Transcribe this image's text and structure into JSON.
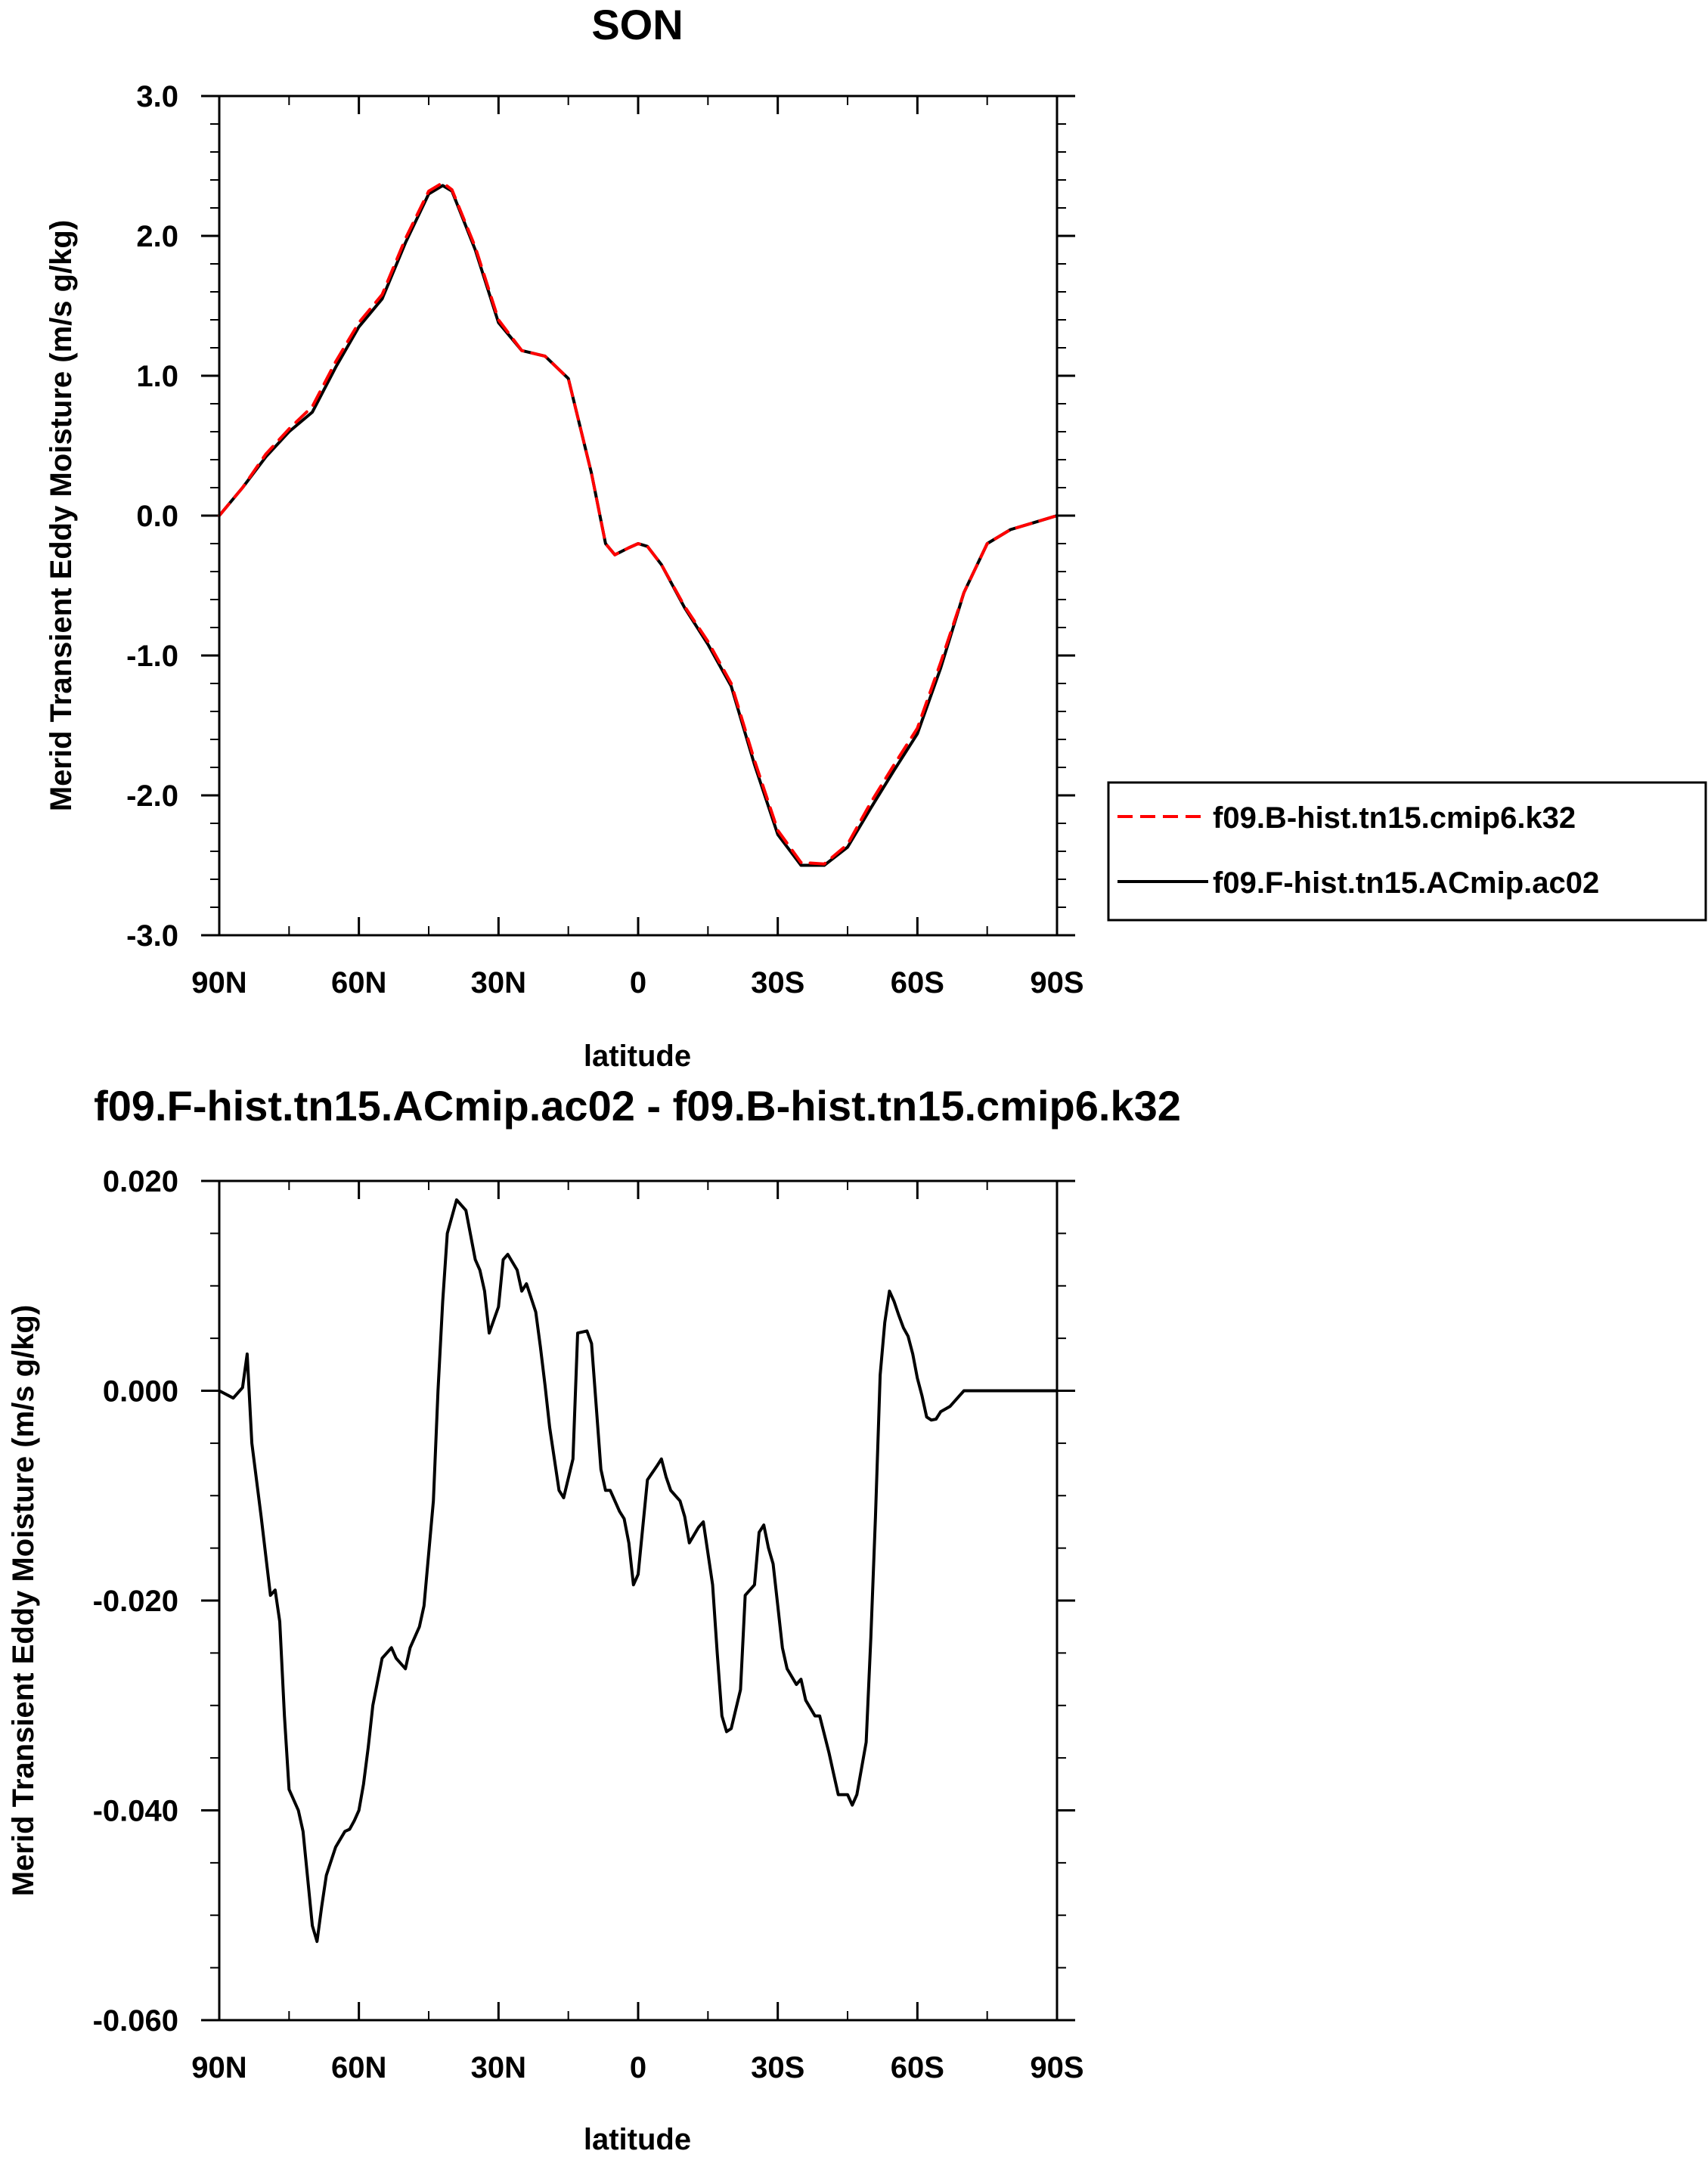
{
  "chart_data": [
    {
      "type": "line",
      "title": "SON",
      "xlabel": "latitude",
      "ylabel": "Merid Transient Eddy Moisture (m/s g/kg)",
      "xlim": [
        90,
        -90
      ],
      "ylim": [
        -3.0,
        3.0
      ],
      "x_ticks": [
        90,
        60,
        30,
        0,
        -30,
        -60,
        -90
      ],
      "x_tick_labels": [
        "90N",
        "60N",
        "30N",
        "0",
        "30S",
        "60S",
        "90S"
      ],
      "y_ticks": [
        3.0,
        2.0,
        1.0,
        0.0,
        -1.0,
        -2.0,
        -3.0
      ],
      "y_tick_labels": [
        "3.0",
        "2.0",
        "1.0",
        "0.0",
        "-1.0",
        "-2.0",
        "-3.0"
      ],
      "grid": false,
      "legend_position": "right",
      "x": [
        90,
        85,
        80,
        75,
        70,
        65,
        60,
        55,
        50,
        45,
        42,
        40,
        35,
        30,
        25,
        20,
        15,
        10,
        7,
        5,
        2,
        0,
        -2,
        -5,
        -10,
        -15,
        -20,
        -25,
        -30,
        -35,
        -40,
        -45,
        -50,
        -55,
        -60,
        -65,
        -70,
        -75,
        -80,
        -85,
        -90
      ],
      "series": [
        {
          "name": "f09.B-hist.tn15.cmip6.k32",
          "color": "#ff0000",
          "dash": "dashed",
          "values": [
            0.0,
            0.2,
            0.44,
            0.62,
            0.78,
            1.1,
            1.38,
            1.58,
            1.98,
            2.32,
            2.38,
            2.33,
            1.92,
            1.4,
            1.18,
            1.14,
            0.98,
            0.3,
            -0.2,
            -0.28,
            -0.23,
            -0.2,
            -0.22,
            -0.35,
            -0.65,
            -0.9,
            -1.2,
            -1.75,
            -2.25,
            -2.48,
            -2.49,
            -2.35,
            -2.05,
            -1.78,
            -1.52,
            -1.05,
            -0.55,
            -0.2,
            -0.1,
            -0.05,
            0.0
          ]
        },
        {
          "name": "f09.F-hist.tn15.ACmip.ac02",
          "color": "#000000",
          "dash": "solid",
          "values": [
            0.0,
            0.2,
            0.42,
            0.6,
            0.74,
            1.06,
            1.35,
            1.55,
            1.95,
            2.3,
            2.36,
            2.32,
            1.9,
            1.38,
            1.18,
            1.14,
            0.98,
            0.3,
            -0.2,
            -0.28,
            -0.23,
            -0.2,
            -0.22,
            -0.35,
            -0.66,
            -0.92,
            -1.22,
            -1.78,
            -2.28,
            -2.5,
            -2.5,
            -2.37,
            -2.09,
            -1.82,
            -1.56,
            -1.09,
            -0.55,
            -0.2,
            -0.1,
            -0.05,
            0.0
          ]
        }
      ]
    },
    {
      "type": "line",
      "title": "f09.F-hist.tn15.ACmip.ac02 - f09.B-hist.tn15.cmip6.k32",
      "xlabel": "latitude",
      "ylabel": "Merid Transient Eddy Moisture (m/s g/kg)",
      "xlim": [
        90,
        -90
      ],
      "ylim": [
        -0.06,
        0.02
      ],
      "x_ticks": [
        90,
        60,
        30,
        0,
        -30,
        -60,
        -90
      ],
      "x_tick_labels": [
        "90N",
        "60N",
        "30N",
        "0",
        "30S",
        "60S",
        "90S"
      ],
      "y_ticks": [
        0.02,
        0.0,
        -0.02,
        -0.04,
        -0.06
      ],
      "y_tick_labels": [
        "0.020",
        "0.000",
        "-0.020",
        "-0.040",
        "-0.060"
      ],
      "grid": false,
      "x": [
        90,
        87,
        85,
        84,
        83,
        81,
        79,
        78,
        77,
        76,
        75,
        73,
        72,
        70,
        69,
        68,
        67,
        65,
        63,
        62,
        61,
        60,
        59,
        58,
        57,
        55,
        53,
        52,
        51,
        50,
        49,
        47,
        46,
        44,
        43,
        42,
        41,
        39,
        37,
        35,
        34,
        33,
        32,
        30,
        29,
        28,
        26,
        25,
        24,
        22,
        21,
        20,
        19,
        17,
        16,
        14,
        13,
        11,
        10,
        8,
        7,
        6,
        4,
        3,
        2,
        1,
        0,
        -2,
        -4,
        -5,
        -6,
        -7,
        -9,
        -10,
        -11,
        -13,
        -14,
        -16,
        -17,
        -18,
        -19,
        -20,
        -22,
        -23,
        -25,
        -26,
        -27,
        -28,
        -29,
        -30,
        -31,
        -32,
        -34,
        -35,
        -36,
        -38,
        -39,
        -41,
        -42,
        -43,
        -45,
        -46,
        -47,
        -49,
        -50,
        -51,
        -52,
        -53,
        -54,
        -55,
        -56,
        -57,
        -58,
        -59,
        -60,
        -61,
        -62,
        -63,
        -64,
        -65,
        -67,
        -69,
        -70,
        -71,
        -72,
        -74,
        -75,
        -76,
        -77,
        -78,
        -79,
        -80,
        -81,
        -82,
        -83,
        -84,
        -85,
        -87,
        -88,
        -89,
        -90
      ],
      "values": [
        0.0,
        -0.0007,
        0.0003,
        0.0035,
        -0.005,
        -0.012,
        -0.0195,
        -0.019,
        -0.022,
        -0.031,
        -0.038,
        -0.04,
        -0.042,
        -0.051,
        -0.0525,
        -0.0492,
        -0.0462,
        -0.0435,
        -0.042,
        -0.0418,
        -0.041,
        -0.04,
        -0.0375,
        -0.034,
        -0.03,
        -0.0255,
        -0.0245,
        -0.0255,
        -0.026,
        -0.0265,
        -0.0245,
        -0.0225,
        -0.0205,
        -0.0105,
        0.0,
        0.0085,
        0.015,
        0.0182,
        0.0172,
        0.0125,
        0.0115,
        0.0095,
        0.0055,
        0.008,
        0.0125,
        0.013,
        0.0115,
        0.0095,
        0.0102,
        0.0075,
        0.0042,
        0.0005,
        -0.0035,
        -0.0095,
        -0.0102,
        -0.0065,
        0.0055,
        0.0057,
        0.0045,
        -0.0075,
        -0.0095,
        -0.0095,
        -0.0115,
        -0.0122,
        -0.0145,
        -0.0185,
        -0.0175,
        -0.0085,
        -0.0072,
        -0.0065,
        -0.0082,
        -0.0095,
        -0.0105,
        -0.012,
        -0.0145,
        -0.013,
        -0.0125,
        -0.0185,
        -0.025,
        -0.031,
        -0.0325,
        -0.0322,
        -0.0285,
        -0.0195,
        -0.0185,
        -0.0135,
        -0.0128,
        -0.015,
        -0.0165,
        -0.0205,
        -0.0245,
        -0.0265,
        -0.028,
        -0.0275,
        -0.0295,
        -0.031,
        -0.031,
        -0.0345,
        -0.0365,
        -0.0385,
        -0.0385,
        -0.0395,
        -0.0385,
        -0.0335,
        -0.0235,
        -0.012,
        0.0015,
        0.0065,
        0.0095,
        0.0085,
        0.0072,
        0.006,
        0.0052,
        0.0035,
        0.0012,
        -0.0005,
        -0.0025,
        -0.0028,
        -0.0027,
        -0.002,
        -0.0015,
        -0.0005,
        0.0,
        0.0,
        0.0,
        0.0,
        0.0,
        0.0,
        0.0,
        0.0,
        0.0,
        0.0,
        0.0,
        0.0,
        0.0,
        0.0,
        0.0,
        0.0,
        0.0,
        0.0,
        0.0
      ]
    }
  ]
}
